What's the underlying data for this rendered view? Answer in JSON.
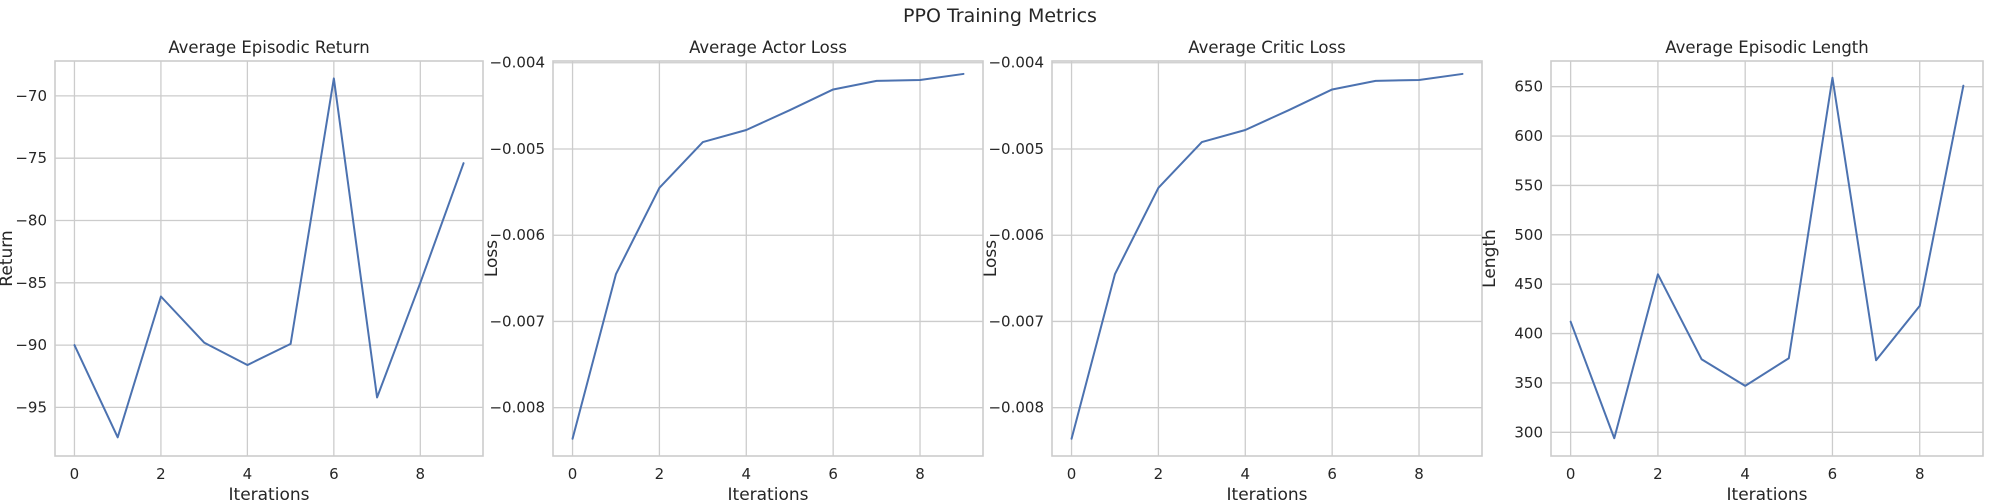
{
  "figure": {
    "title": "PPO Training Metrics"
  },
  "colors": {
    "line": "#4c72b0"
  },
  "chart_data": [
    {
      "type": "line",
      "title": "Average Episodic Return",
      "xlabel": "Iterations",
      "ylabel": "Return",
      "x": [
        0,
        1,
        2,
        3,
        4,
        5,
        6,
        7,
        8,
        9
      ],
      "series": [
        {
          "values": [
            -90.0,
            -97.4,
            -86.1,
            -89.8,
            -91.6,
            -89.9,
            -68.6,
            -94.2,
            -85.0,
            -75.4
          ]
        }
      ],
      "xlim": [
        -0.45,
        9.45
      ],
      "ylim": [
        -98.9,
        -67.2
      ],
      "xticks": [
        0,
        2,
        4,
        6,
        8
      ],
      "xtick_labels": [
        "0",
        "2",
        "4",
        "6",
        "8"
      ],
      "yticks": [
        -95,
        -90,
        -85,
        -80,
        -75,
        -70
      ],
      "ytick_labels": [
        "−95",
        "−90",
        "−85",
        "−80",
        "−75",
        "−70"
      ],
      "grid": true
    },
    {
      "type": "line",
      "title": "Average Actor Loss",
      "xlabel": "Iterations",
      "ylabel": "Loss",
      "x": [
        0,
        1,
        2,
        3,
        4,
        5,
        6,
        7,
        8,
        9
      ],
      "series": [
        {
          "values": [
            -0.00836,
            -0.00645,
            -0.00545,
            -0.00492,
            -0.00478,
            -0.00455,
            -0.00431,
            -0.00421,
            -0.0042,
            -0.00413
          ]
        }
      ],
      "xlim": [
        -0.45,
        9.45
      ],
      "ylim": [
        -0.00856,
        -0.00398
      ],
      "xticks": [
        0,
        2,
        4,
        6,
        8
      ],
      "xtick_labels": [
        "0",
        "2",
        "4",
        "6",
        "8"
      ],
      "yticks": [
        -0.008,
        -0.007,
        -0.006,
        -0.005,
        -0.004
      ],
      "ytick_labels": [
        "−0.008",
        "−0.007",
        "−0.006",
        "−0.005",
        "−0.004"
      ],
      "grid": true
    },
    {
      "type": "line",
      "title": "Average Critic Loss",
      "xlabel": "Iterations",
      "ylabel": "Loss",
      "x": [
        0,
        1,
        2,
        3,
        4,
        5,
        6,
        7,
        8,
        9
      ],
      "series": [
        {
          "values": [
            -0.00836,
            -0.00645,
            -0.00545,
            -0.00492,
            -0.00478,
            -0.00455,
            -0.00431,
            -0.00421,
            -0.0042,
            -0.00413
          ]
        }
      ],
      "xlim": [
        -0.45,
        9.45
      ],
      "ylim": [
        -0.00856,
        -0.00398
      ],
      "xticks": [
        0,
        2,
        4,
        6,
        8
      ],
      "xtick_labels": [
        "0",
        "2",
        "4",
        "6",
        "8"
      ],
      "yticks": [
        -0.008,
        -0.007,
        -0.006,
        -0.005,
        -0.004
      ],
      "ytick_labels": [
        "−0.008",
        "−0.007",
        "−0.006",
        "−0.005",
        "−0.004"
      ],
      "grid": true
    },
    {
      "type": "line",
      "title": "Average Episodic Length",
      "xlabel": "Iterations",
      "ylabel": "Length",
      "x": [
        0,
        1,
        2,
        3,
        4,
        5,
        6,
        7,
        8,
        9
      ],
      "series": [
        {
          "values": [
            412,
            294,
            460,
            374,
            347,
            375,
            659,
            373,
            428,
            651
          ]
        }
      ],
      "xlim": [
        -0.45,
        9.45
      ],
      "ylim": [
        276,
        676
      ],
      "xticks": [
        0,
        2,
        4,
        6,
        8
      ],
      "xtick_labels": [
        "0",
        "2",
        "4",
        "6",
        "8"
      ],
      "yticks": [
        300,
        350,
        400,
        450,
        500,
        550,
        600,
        650
      ],
      "ytick_labels": [
        "300",
        "350",
        "400",
        "450",
        "500",
        "550",
        "600",
        "650"
      ],
      "grid": true
    }
  ]
}
